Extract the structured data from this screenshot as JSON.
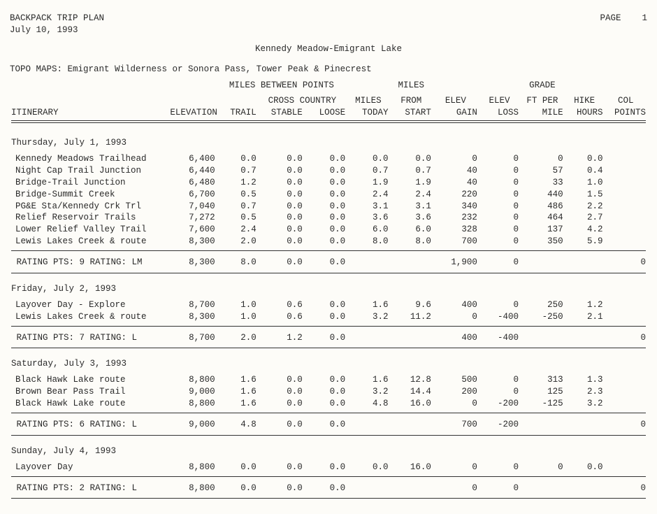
{
  "header": {
    "title_line1": "BACKPACK TRIP PLAN",
    "title_line2": "July 10, 1993",
    "page_label": "PAGE",
    "page_num": "1",
    "trip_title": "Kennedy Meadow-Emigrant Lake",
    "topo_label": "TOPO MAPS:",
    "topo_value": "Emigrant Wilderness or Sonora Pass, Tower Peak & Pinecrest"
  },
  "columns": {
    "grp_miles": "MILES BETWEEN POINTS",
    "grp_cross": "CROSS COUNTRY",
    "grp_miles2": "MILES",
    "grp_from": "FROM",
    "grp_grade1": "GRADE",
    "grp_grade2": "FT PER",
    "itin": "ITINERARY",
    "elev": "ELEVATION",
    "trail": "TRAIL",
    "stable": "STABLE",
    "loose": "LOOSE",
    "today": "TODAY",
    "start": "START",
    "gain": "ELEV",
    "gain2": "GAIN",
    "loss": "ELEV",
    "loss2": "LOSS",
    "grade": "MILE",
    "hours": "HIKE",
    "hours2": "HOURS",
    "pts": "COL",
    "pts2": "POINTS",
    "miles_label": "MILES"
  },
  "days": [
    {
      "label": "Thursday, July 1, 1993",
      "rows": [
        {
          "name": "Kennedy Meadows Trailhead",
          "elev": "6,400",
          "trail": "0.0",
          "stable": "0.0",
          "loose": "0.0",
          "today": "0.0",
          "start": "0.0",
          "gain": "0",
          "loss": "0",
          "grade": "0",
          "hours": "0.0"
        },
        {
          "name": "Night Cap Trail Junction",
          "elev": "6,440",
          "trail": "0.7",
          "stable": "0.0",
          "loose": "0.0",
          "today": "0.7",
          "start": "0.7",
          "gain": "40",
          "loss": "0",
          "grade": "57",
          "hours": "0.4"
        },
        {
          "name": "Bridge-Trail Junction",
          "elev": "6,480",
          "trail": "1.2",
          "stable": "0.0",
          "loose": "0.0",
          "today": "1.9",
          "start": "1.9",
          "gain": "40",
          "loss": "0",
          "grade": "33",
          "hours": "1.0"
        },
        {
          "name": "Bridge-Summit Creek",
          "elev": "6,700",
          "trail": "0.5",
          "stable": "0.0",
          "loose": "0.0",
          "today": "2.4",
          "start": "2.4",
          "gain": "220",
          "loss": "0",
          "grade": "440",
          "hours": "1.5"
        },
        {
          "name": "PG&E Sta/Kennedy Crk Trl",
          "elev": "7,040",
          "trail": "0.7",
          "stable": "0.0",
          "loose": "0.0",
          "today": "3.1",
          "start": "3.1",
          "gain": "340",
          "loss": "0",
          "grade": "486",
          "hours": "2.2"
        },
        {
          "name": "Relief Reservoir Trails",
          "elev": "7,272",
          "trail": "0.5",
          "stable": "0.0",
          "loose": "0.0",
          "today": "3.6",
          "start": "3.6",
          "gain": "232",
          "loss": "0",
          "grade": "464",
          "hours": "2.7"
        },
        {
          "name": "Lower Relief Valley Trail",
          "elev": "7,600",
          "trail": "2.4",
          "stable": "0.0",
          "loose": "0.0",
          "today": "6.0",
          "start": "6.0",
          "gain": "328",
          "loss": "0",
          "grade": "137",
          "hours": "4.2"
        },
        {
          "name": "Lewis Lakes Creek & route",
          "elev": "8,300",
          "trail": "2.0",
          "stable": "0.0",
          "loose": "0.0",
          "today": "8.0",
          "start": "8.0",
          "gain": "700",
          "loss": "0",
          "grade": "350",
          "hours": "5.9"
        }
      ],
      "rating": {
        "label": "RATING PTS:  9 RATING: LM",
        "elev": "8,300",
        "trail": "8.0",
        "stable": "0.0",
        "loose": "0.0",
        "gain": "1,900",
        "loss": "0",
        "pts": "0"
      }
    },
    {
      "label": "Friday, July 2, 1993",
      "rows": [
        {
          "name": "Layover Day - Explore",
          "elev": "8,700",
          "trail": "1.0",
          "stable": "0.6",
          "loose": "0.0",
          "today": "1.6",
          "start": "9.6",
          "gain": "400",
          "loss": "0",
          "grade": "250",
          "hours": "1.2"
        },
        {
          "name": "Lewis Lakes Creek & route",
          "elev": "8,300",
          "trail": "1.0",
          "stable": "0.6",
          "loose": "0.0",
          "today": "3.2",
          "start": "11.2",
          "gain": "0",
          "loss": "-400",
          "grade": "-250",
          "hours": "2.1"
        }
      ],
      "rating": {
        "label": "RATING PTS:  7 RATING: L",
        "elev": "8,700",
        "trail": "2.0",
        "stable": "1.2",
        "loose": "0.0",
        "gain": "400",
        "loss": "-400",
        "pts": "0"
      }
    },
    {
      "label": "Saturday, July 3, 1993",
      "rows": [
        {
          "name": "Black Hawk Lake route",
          "elev": "8,800",
          "trail": "1.6",
          "stable": "0.0",
          "loose": "0.0",
          "today": "1.6",
          "start": "12.8",
          "gain": "500",
          "loss": "0",
          "grade": "313",
          "hours": "1.3"
        },
        {
          "name": "Brown Bear Pass Trail",
          "elev": "9,000",
          "trail": "1.6",
          "stable": "0.0",
          "loose": "0.0",
          "today": "3.2",
          "start": "14.4",
          "gain": "200",
          "loss": "0",
          "grade": "125",
          "hours": "2.3"
        },
        {
          "name": "Black Hawk Lake route",
          "elev": "8,800",
          "trail": "1.6",
          "stable": "0.0",
          "loose": "0.0",
          "today": "4.8",
          "start": "16.0",
          "gain": "0",
          "loss": "-200",
          "grade": "-125",
          "hours": "3.2"
        }
      ],
      "rating": {
        "label": "RATING PTS:  6 RATING: L",
        "elev": "9,000",
        "trail": "4.8",
        "stable": "0.0",
        "loose": "0.0",
        "gain": "700",
        "loss": "-200",
        "pts": "0"
      }
    },
    {
      "label": "Sunday, July 4, 1993",
      "rows": [
        {
          "name": "Layover Day",
          "elev": "8,800",
          "trail": "0.0",
          "stable": "0.0",
          "loose": "0.0",
          "today": "0.0",
          "start": "16.0",
          "gain": "0",
          "loss": "0",
          "grade": "0",
          "hours": "0.0"
        }
      ],
      "rating": {
        "label": "RATING PTS:  2 RATING: L",
        "elev": "8,800",
        "trail": "0.0",
        "stable": "0.0",
        "loose": "0.0",
        "gain": "0",
        "loss": "0",
        "pts": "0"
      }
    }
  ]
}
